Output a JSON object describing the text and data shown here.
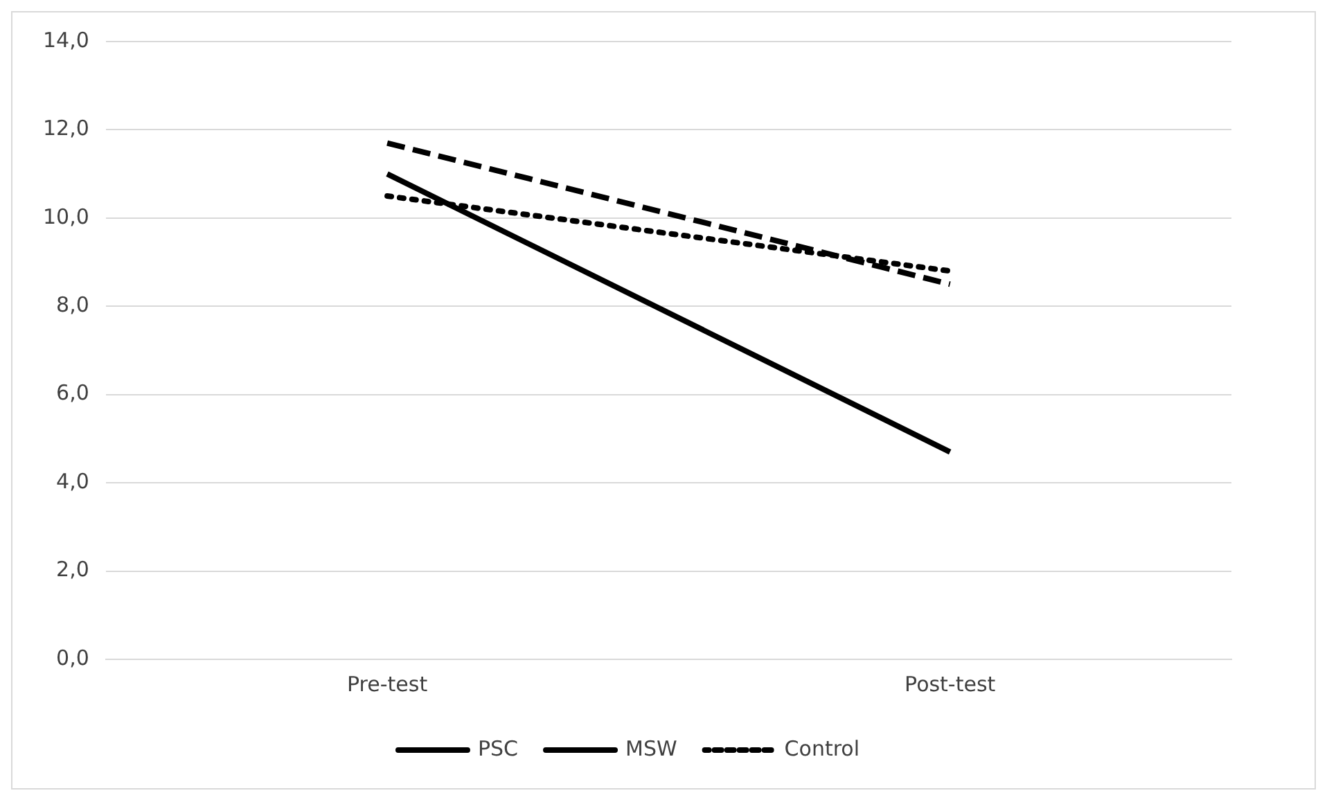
{
  "chart_data": {
    "type": "line",
    "categories": [
      "Pre-test",
      "Post-test"
    ],
    "series": [
      {
        "name": "PSC",
        "color": "#000000",
        "values": [
          11.0,
          4.7
        ],
        "line_style": "solid"
      },
      {
        "name": "MSW",
        "color": "#000000",
        "values": [
          11.7,
          8.5
        ],
        "line_style": "dashed"
      },
      {
        "name": "Control",
        "color": "#000000",
        "values": [
          10.5,
          8.8
        ],
        "line_style": "dotted"
      }
    ],
    "ylim": [
      0,
      14
    ],
    "yticks": [
      {
        "value": 0,
        "label": "0,0"
      },
      {
        "value": 2,
        "label": "2,0"
      },
      {
        "value": 4,
        "label": "4,0"
      },
      {
        "value": 6,
        "label": "6,0"
      },
      {
        "value": 8,
        "label": "8,0"
      },
      {
        "value": 10,
        "label": "10,0"
      },
      {
        "value": 12,
        "label": "12,0"
      },
      {
        "value": 14,
        "label": "14,0"
      }
    ],
    "grid": "y",
    "legend": "bottom",
    "marker": "none"
  }
}
